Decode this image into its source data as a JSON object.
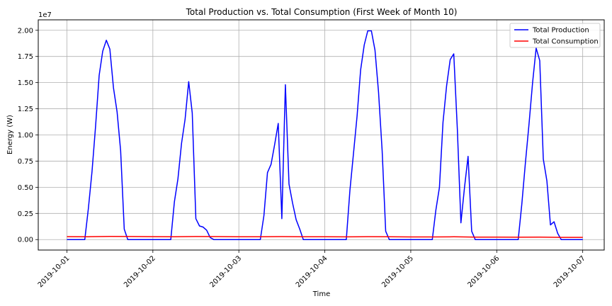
{
  "chart_data": {
    "type": "line",
    "title": "Total Production vs. Total Consumption (First Week of Month 10)",
    "xlabel": "Time",
    "ylabel": "Energy (W)",
    "y_scale_label": "1e7",
    "y_unit_multiplier": 10000000,
    "xlim": [
      "2019-09-30T16:00",
      "2019-10-07T06:00"
    ],
    "ylim": [
      -1000000,
      21000000
    ],
    "x_ticks": [
      "2019-10-01",
      "2019-10-02",
      "2019-10-03",
      "2019-10-04",
      "2019-10-05",
      "2019-10-06",
      "2019-10-07"
    ],
    "y_ticks": [
      0,
      2500000,
      5000000,
      7500000,
      10000000,
      12500000,
      15000000,
      17500000,
      20000000
    ],
    "y_tick_labels": [
      "0.00",
      "0.25",
      "0.50",
      "0.75",
      "1.00",
      "1.25",
      "1.50",
      "1.75",
      "2.00"
    ],
    "grid": true,
    "legend_placement": "top-right",
    "series": [
      {
        "name": "Total Production",
        "color": "#0000ff",
        "points": [
          [
            "2019-10-01T00:00",
            0
          ],
          [
            "2019-10-01T05:00",
            0
          ],
          [
            "2019-10-01T06:00",
            3000000
          ],
          [
            "2019-10-01T07:00",
            6500000
          ],
          [
            "2019-10-01T08:00",
            10800000
          ],
          [
            "2019-10-01T09:00",
            15700000
          ],
          [
            "2019-10-01T10:00",
            18000000
          ],
          [
            "2019-10-01T11:00",
            19050000
          ],
          [
            "2019-10-01T12:00",
            18200000
          ],
          [
            "2019-10-01T13:00",
            14500000
          ],
          [
            "2019-10-01T14:00",
            12200000
          ],
          [
            "2019-10-01T15:00",
            8500000
          ],
          [
            "2019-10-01T16:00",
            1000000
          ],
          [
            "2019-10-01T17:00",
            0
          ],
          [
            "2019-10-02T05:00",
            0
          ],
          [
            "2019-10-02T06:00",
            3600000
          ],
          [
            "2019-10-02T07:00",
            5800000
          ],
          [
            "2019-10-02T08:00",
            9200000
          ],
          [
            "2019-10-02T09:00",
            11500000
          ],
          [
            "2019-10-02T10:00",
            15100000
          ],
          [
            "2019-10-02T11:00",
            12100000
          ],
          [
            "2019-10-02T12:00",
            2000000
          ],
          [
            "2019-10-02T13:00",
            1300000
          ],
          [
            "2019-10-02T14:00",
            1200000
          ],
          [
            "2019-10-02T15:00",
            900000
          ],
          [
            "2019-10-02T16:00",
            200000
          ],
          [
            "2019-10-02T17:00",
            0
          ],
          [
            "2019-10-03T06:00",
            0
          ],
          [
            "2019-10-03T07:00",
            2300000
          ],
          [
            "2019-10-03T08:00",
            6400000
          ],
          [
            "2019-10-03T09:00",
            7200000
          ],
          [
            "2019-10-03T10:00",
            9100000
          ],
          [
            "2019-10-03T11:00",
            11100000
          ],
          [
            "2019-10-03T12:00",
            2000000
          ],
          [
            "2019-10-03T13:00",
            14800000
          ],
          [
            "2019-10-03T14:00",
            5300000
          ],
          [
            "2019-10-03T15:00",
            3500000
          ],
          [
            "2019-10-03T16:00",
            1900000
          ],
          [
            "2019-10-03T17:00",
            1000000
          ],
          [
            "2019-10-03T18:00",
            0
          ],
          [
            "2019-10-04T06:00",
            0
          ],
          [
            "2019-10-04T07:00",
            4700000
          ],
          [
            "2019-10-04T08:00",
            8200000
          ],
          [
            "2019-10-04T09:00",
            11800000
          ],
          [
            "2019-10-04T10:00",
            16200000
          ],
          [
            "2019-10-04T11:00",
            18600000
          ],
          [
            "2019-10-04T12:00",
            19950000
          ],
          [
            "2019-10-04T13:00",
            19950000
          ],
          [
            "2019-10-04T14:00",
            18100000
          ],
          [
            "2019-10-04T15:00",
            14100000
          ],
          [
            "2019-10-04T16:00",
            8500000
          ],
          [
            "2019-10-04T17:00",
            800000
          ],
          [
            "2019-10-04T18:00",
            0
          ],
          [
            "2019-10-05T06:00",
            0
          ],
          [
            "2019-10-05T07:00",
            2800000
          ],
          [
            "2019-10-05T08:00",
            5000000
          ],
          [
            "2019-10-05T09:00",
            11200000
          ],
          [
            "2019-10-05T10:00",
            14700000
          ],
          [
            "2019-10-05T11:00",
            17200000
          ],
          [
            "2019-10-05T12:00",
            17750000
          ],
          [
            "2019-10-05T13:00",
            10500000
          ],
          [
            "2019-10-05T14:00",
            1600000
          ],
          [
            "2019-10-05T15:00",
            5000000
          ],
          [
            "2019-10-05T16:00",
            7950000
          ],
          [
            "2019-10-05T17:00",
            800000
          ],
          [
            "2019-10-05T18:00",
            0
          ],
          [
            "2019-10-06T06:00",
            0
          ],
          [
            "2019-10-06T07:00",
            3400000
          ],
          [
            "2019-10-06T08:00",
            7300000
          ],
          [
            "2019-10-06T09:00",
            11000000
          ],
          [
            "2019-10-06T10:00",
            15000000
          ],
          [
            "2019-10-06T11:00",
            18300000
          ],
          [
            "2019-10-06T12:00",
            17100000
          ],
          [
            "2019-10-06T13:00",
            7700000
          ],
          [
            "2019-10-06T14:00",
            5600000
          ],
          [
            "2019-10-06T15:00",
            1400000
          ],
          [
            "2019-10-06T16:00",
            1700000
          ],
          [
            "2019-10-06T17:00",
            600000
          ],
          [
            "2019-10-06T18:00",
            0
          ],
          [
            "2019-10-07T00:00",
            0
          ]
        ]
      },
      {
        "name": "Total Consumption",
        "color": "#ff0000",
        "points": [
          [
            "2019-10-01T00:00",
            280000
          ],
          [
            "2019-10-01T06:00",
            270000
          ],
          [
            "2019-10-01T12:00",
            300000
          ],
          [
            "2019-10-01T18:00",
            290000
          ],
          [
            "2019-10-02T00:00",
            280000
          ],
          [
            "2019-10-02T06:00",
            275000
          ],
          [
            "2019-10-02T12:00",
            295000
          ],
          [
            "2019-10-02T18:00",
            285000
          ],
          [
            "2019-10-03T00:00",
            270000
          ],
          [
            "2019-10-03T06:00",
            265000
          ],
          [
            "2019-10-03T12:00",
            285000
          ],
          [
            "2019-10-03T18:00",
            275000
          ],
          [
            "2019-10-04T00:00",
            265000
          ],
          [
            "2019-10-04T06:00",
            260000
          ],
          [
            "2019-10-04T12:00",
            280000
          ],
          [
            "2019-10-04T18:00",
            270000
          ],
          [
            "2019-10-05T00:00",
            255000
          ],
          [
            "2019-10-05T06:00",
            250000
          ],
          [
            "2019-10-05T12:00",
            265000
          ],
          [
            "2019-10-05T18:00",
            240000
          ],
          [
            "2019-10-06T00:00",
            230000
          ],
          [
            "2019-10-06T06:00",
            225000
          ],
          [
            "2019-10-06T12:00",
            235000
          ],
          [
            "2019-10-06T18:00",
            215000
          ],
          [
            "2019-10-07T00:00",
            210000
          ]
        ]
      }
    ]
  }
}
